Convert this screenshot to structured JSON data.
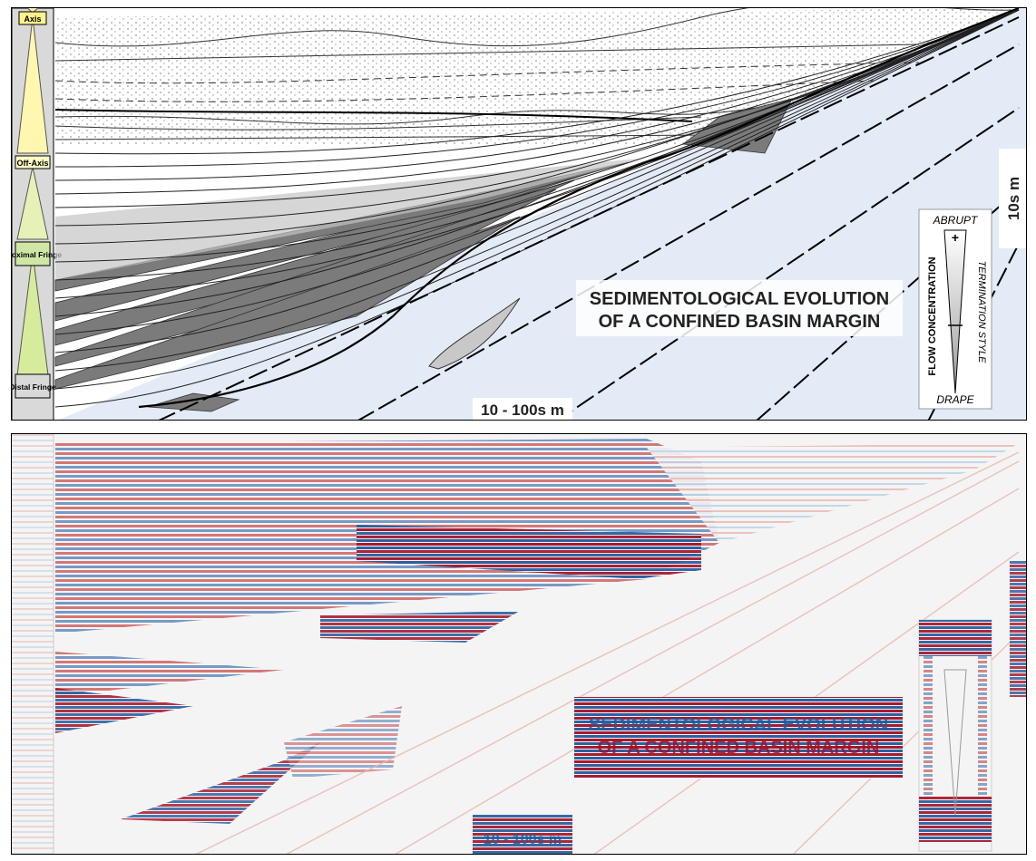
{
  "top_panel": {
    "column_labels": [
      "Axis",
      "Off-Axis",
      "Proximal Fringe",
      "Distal Fringe"
    ],
    "title_line1": "SEDIMENTOLOGICAL EVOLUTION",
    "title_line2": "OF A CONFINED BASIN MARGIN",
    "scale_horizontal": "10 - 100s m",
    "scale_vertical": "10s m",
    "legend": {
      "left_label": "FLOW CONCENTRATION",
      "right_label": "TERMINATION STYLE",
      "top_label": "ABRUPT",
      "bottom_label": "DRAPE",
      "plus": "+",
      "minus": "–"
    }
  },
  "bottom_panel": {
    "title_line1": "SEDIMENTOLOGICAL EVOLUTION",
    "title_line2": "OF A CONFINED BASIN MARGIN",
    "scale_horizontal": "10 - 100s m"
  },
  "colors": {
    "background_blue": "#e3ebf6",
    "mudstone_gray": "#7b7b7b",
    "axis_yellow": "#fffbc4",
    "fringe_green": "#cfe7a4",
    "seismic_red": "#b2182b",
    "seismic_blue": "#2166ac"
  }
}
